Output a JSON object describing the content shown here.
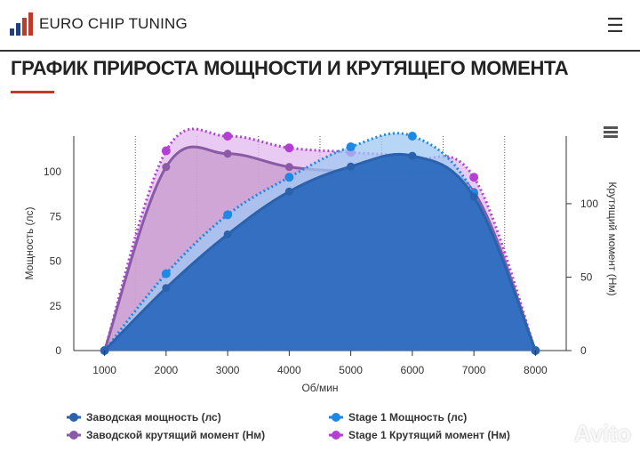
{
  "header": {
    "brand": "EURO CHIP TUNING",
    "menu_icon": "hamburger-icon"
  },
  "page_title": "ГРАФИК ПРИРОСТА МОЩНОСТИ И КРУТЯЩЕГО МОМЕНТА",
  "watermark": "Avito",
  "chart_data": {
    "type": "area",
    "xlabel": "Об/мин",
    "ylabel": "Мощность (лс)",
    "y2label": "Крутящий момент (Нм)",
    "x": [
      1000,
      2000,
      3000,
      4000,
      5000,
      6000,
      7000,
      8000
    ],
    "xlim": [
      500,
      8500
    ],
    "ylim": [
      0,
      120
    ],
    "y2lim": [
      0,
      146
    ],
    "xticks": [
      "1000",
      "2000",
      "3000",
      "4000",
      "5000",
      "6000",
      "7000",
      "8000"
    ],
    "yticks": [
      "0",
      "25",
      "50",
      "75",
      "100"
    ],
    "y2ticks": [
      "0",
      "50",
      "100"
    ],
    "grid": "vertical dotted",
    "legend": "bottom",
    "series": [
      {
        "name": "Stage 1 Крутящий момент (Нм)",
        "axis": "right",
        "style": "dotted",
        "color": "#b33fd4",
        "fill": "#e2b8ee",
        "values": [
          0,
          136,
          146,
          138,
          135,
          131,
          118,
          0
        ]
      },
      {
        "name": "Заводской крутящий момент (Нм)",
        "axis": "right",
        "style": "solid",
        "color": "#8a5aa6",
        "fill": "#c59acc",
        "values": [
          0,
          125,
          134,
          125,
          122,
          121,
          108,
          0
        ]
      },
      {
        "name": "Stage 1 Мощность (лс)",
        "axis": "left",
        "style": "dotted",
        "color": "#1e88e5",
        "fill": "#9fc8f3",
        "values": [
          0,
          43,
          76,
          97,
          114,
          120,
          88,
          0
        ]
      },
      {
        "name": "Заводская мощность (лс)",
        "axis": "left",
        "style": "solid",
        "color": "#2a62ad",
        "fill": "#2f6cbf",
        "values": [
          0,
          35,
          65,
          89,
          103,
          109,
          86,
          0
        ]
      }
    ],
    "legend_order": [
      3,
      2,
      1,
      0
    ]
  }
}
